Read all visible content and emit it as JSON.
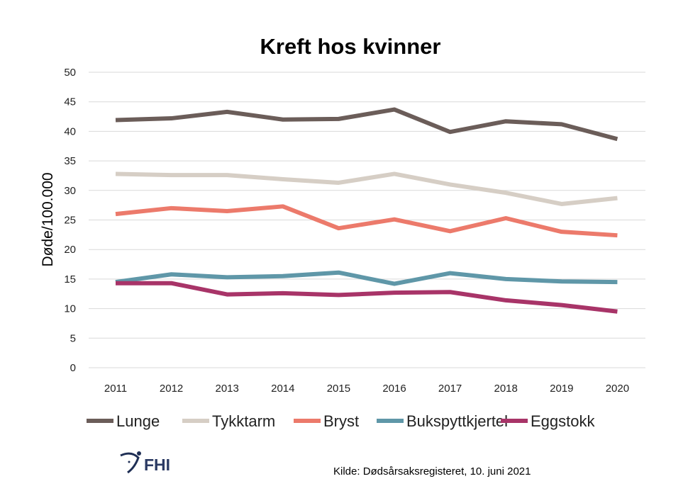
{
  "chart_data": {
    "type": "line",
    "title": "Kreft hos kvinner",
    "xlabel": "",
    "ylabel": "Døde/100.000",
    "ylim": [
      0,
      50
    ],
    "yticks": [
      0,
      5,
      10,
      15,
      20,
      25,
      30,
      35,
      40,
      45,
      50
    ],
    "grid": true,
    "legend": "bottom",
    "categories": [
      "2011",
      "2012",
      "2013",
      "2014",
      "2015",
      "2016",
      "2017",
      "2018",
      "2019",
      "2020"
    ],
    "series": [
      {
        "name": "Lunge",
        "color": "#6b5d59",
        "values": [
          41.9,
          42.2,
          43.3,
          42.0,
          42.1,
          43.7,
          39.9,
          41.7,
          41.2,
          38.7
        ]
      },
      {
        "name": "Tykktarm",
        "color": "#d6cec5",
        "values": [
          32.8,
          32.6,
          32.6,
          31.9,
          31.3,
          32.8,
          31.0,
          29.6,
          27.7,
          28.7
        ]
      },
      {
        "name": "Bryst",
        "color": "#ec7a6b",
        "values": [
          26.0,
          27.0,
          26.5,
          27.3,
          23.6,
          25.1,
          23.1,
          25.3,
          23.0,
          22.4
        ]
      },
      {
        "name": "Bukspyttkjertel",
        "color": "#5f97a8",
        "values": [
          14.5,
          15.8,
          15.3,
          15.5,
          16.1,
          14.2,
          16.0,
          15.0,
          14.6,
          14.5
        ]
      },
      {
        "name": "Eggstokk",
        "color": "#a83468",
        "values": [
          14.3,
          14.3,
          12.4,
          12.6,
          12.3,
          12.7,
          12.8,
          11.4,
          10.6,
          9.5
        ]
      }
    ],
    "source": "Kilde: Dødsårsaksregisteret, 10. juni 2021",
    "logo": "FHI"
  }
}
